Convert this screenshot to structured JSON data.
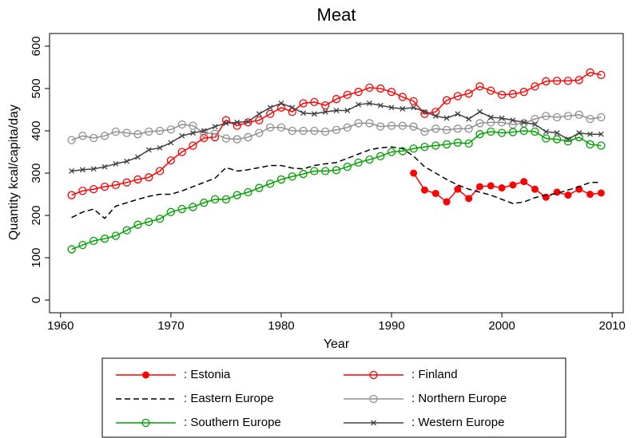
{
  "chart_data": {
    "type": "line",
    "title": "Meat",
    "x_label": "Year",
    "y_label": "Quantity kcal/capita/day",
    "xlim": [
      1959,
      2011
    ],
    "xticks": [
      1960,
      1970,
      1980,
      1990,
      2000,
      2010
    ],
    "ylim": [
      -30,
      630
    ],
    "yticks": [
      0,
      100,
      200,
      300,
      400,
      500,
      600
    ],
    "x": [
      1961,
      1962,
      1963,
      1964,
      1965,
      1966,
      1967,
      1968,
      1969,
      1970,
      1971,
      1972,
      1973,
      1974,
      1975,
      1976,
      1977,
      1978,
      1979,
      1980,
      1981,
      1982,
      1983,
      1984,
      1985,
      1986,
      1987,
      1988,
      1989,
      1990,
      1991,
      1992,
      1993,
      1994,
      1995,
      1996,
      1997,
      1998,
      1999,
      2000,
      2001,
      2002,
      2003,
      2004,
      2005,
      2006,
      2007,
      2008,
      2009
    ],
    "series": [
      {
        "name": ": Estonia",
        "color": "#ff0000",
        "marker": "filled",
        "dash": false,
        "values": [
          null,
          null,
          null,
          null,
          null,
          null,
          null,
          null,
          null,
          null,
          null,
          null,
          null,
          null,
          null,
          null,
          null,
          null,
          null,
          null,
          null,
          null,
          null,
          null,
          null,
          null,
          null,
          null,
          null,
          null,
          null,
          300,
          260,
          252,
          232,
          262,
          240,
          268,
          270,
          265,
          272,
          280,
          262,
          243,
          255,
          248,
          262,
          250,
          253
        ]
      },
      {
        "name": ": Finland",
        "color": "#ff0000",
        "marker": "hollow",
        "dash": false,
        "values": [
          248,
          258,
          262,
          268,
          272,
          278,
          285,
          290,
          305,
          330,
          350,
          365,
          383,
          385,
          425,
          412,
          420,
          425,
          440,
          455,
          445,
          465,
          468,
          460,
          475,
          485,
          492,
          502,
          500,
          492,
          480,
          470,
          440,
          445,
          472,
          482,
          488,
          505,
          495,
          485,
          487,
          492,
          505,
          517,
          518,
          518,
          520,
          538,
          532
        ]
      },
      {
        "name": ": Eastern Europe",
        "color": "#000000",
        "marker": "none",
        "dash": true,
        "values": [
          195,
          208,
          215,
          193,
          222,
          230,
          238,
          245,
          250,
          250,
          258,
          268,
          278,
          288,
          313,
          305,
          308,
          313,
          318,
          318,
          312,
          310,
          318,
          322,
          325,
          335,
          345,
          355,
          360,
          362,
          358,
          340,
          315,
          300,
          285,
          272,
          262,
          255,
          248,
          238,
          228,
          232,
          242,
          248,
          252,
          260,
          268,
          278,
          278
        ]
      },
      {
        "name": ": Northern Europe",
        "color": "#909090",
        "marker": "hollow",
        "dash": false,
        "values": [
          378,
          388,
          383,
          388,
          398,
          395,
          392,
          398,
          400,
          403,
          415,
          412,
          395,
          393,
          382,
          380,
          385,
          395,
          408,
          408,
          400,
          400,
          400,
          398,
          402,
          408,
          418,
          418,
          410,
          412,
          412,
          410,
          398,
          405,
          402,
          405,
          405,
          418,
          420,
          420,
          415,
          418,
          428,
          435,
          432,
          435,
          438,
          428,
          432
        ]
      },
      {
        "name": ": Southern Europe",
        "color": "#00a000",
        "marker": "hollow",
        "dash": false,
        "values": [
          120,
          130,
          140,
          145,
          152,
          165,
          178,
          185,
          192,
          208,
          215,
          220,
          230,
          238,
          238,
          248,
          255,
          265,
          275,
          285,
          292,
          298,
          305,
          305,
          307,
          315,
          325,
          332,
          340,
          350,
          352,
          358,
          362,
          365,
          368,
          372,
          370,
          392,
          398,
          395,
          397,
          400,
          398,
          382,
          380,
          375,
          385,
          368,
          365
        ]
      },
      {
        "name": ": Western Europe",
        "color": "#404040",
        "marker": "x",
        "dash": false,
        "values": [
          305,
          308,
          310,
          315,
          322,
          328,
          338,
          355,
          360,
          372,
          388,
          395,
          400,
          410,
          418,
          420,
          422,
          440,
          455,
          465,
          455,
          442,
          440,
          445,
          448,
          448,
          462,
          465,
          460,
          455,
          452,
          455,
          445,
          435,
          430,
          440,
          428,
          445,
          432,
          430,
          425,
          420,
          415,
          398,
          395,
          380,
          395,
          392,
          392
        ]
      }
    ]
  }
}
